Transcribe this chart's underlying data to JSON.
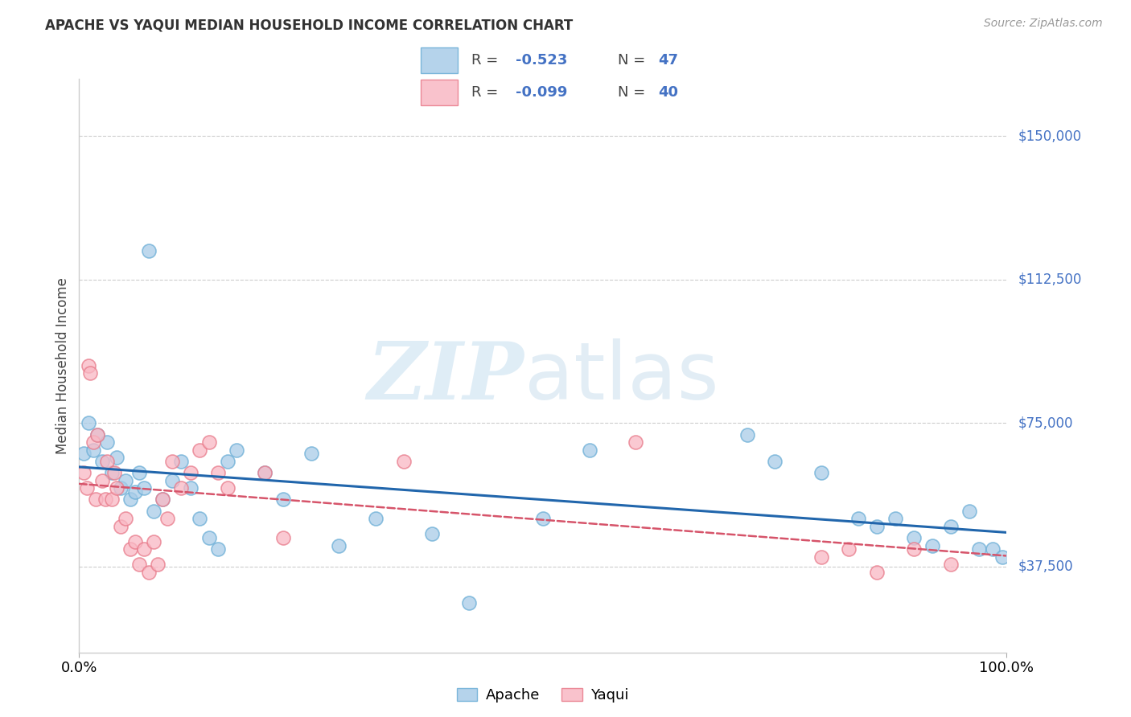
{
  "title": "APACHE VS YAQUI MEDIAN HOUSEHOLD INCOME CORRELATION CHART",
  "source": "Source: ZipAtlas.com",
  "ylabel": "Median Household Income",
  "xlim": [
    0.0,
    1.0
  ],
  "ylim": [
    15000,
    165000
  ],
  "yticks": [
    37500,
    75000,
    112500,
    150000
  ],
  "ytick_labels": [
    "$37,500",
    "$75,000",
    "$112,500",
    "$150,000"
  ],
  "apache_R": "-0.523",
  "apache_N": "47",
  "yaqui_R": "-0.099",
  "yaqui_N": "40",
  "apache_color": "#a8cce8",
  "apache_edge": "#6baed6",
  "yaqui_color": "#f9b8c4",
  "yaqui_edge": "#e87a8a",
  "apache_line_color": "#2166ac",
  "yaqui_line_color": "#d6546a",
  "accent_color": "#4472c4",
  "grid_color": "#cccccc",
  "background": "#ffffff",
  "apache_x": [
    0.005,
    0.01,
    0.015,
    0.02,
    0.025,
    0.03,
    0.035,
    0.04,
    0.045,
    0.05,
    0.055,
    0.06,
    0.065,
    0.07,
    0.075,
    0.08,
    0.09,
    0.1,
    0.11,
    0.12,
    0.13,
    0.14,
    0.15,
    0.16,
    0.17,
    0.2,
    0.22,
    0.25,
    0.28,
    0.32,
    0.38,
    0.42,
    0.5,
    0.55,
    0.72,
    0.75,
    0.8,
    0.84,
    0.86,
    0.88,
    0.9,
    0.92,
    0.94,
    0.96,
    0.97,
    0.985,
    0.995
  ],
  "apache_y": [
    67000,
    75000,
    68000,
    72000,
    65000,
    70000,
    62000,
    66000,
    58000,
    60000,
    55000,
    57000,
    62000,
    58000,
    120000,
    52000,
    55000,
    60000,
    65000,
    58000,
    50000,
    45000,
    42000,
    65000,
    68000,
    62000,
    55000,
    67000,
    43000,
    50000,
    46000,
    28000,
    50000,
    68000,
    72000,
    65000,
    62000,
    50000,
    48000,
    50000,
    45000,
    43000,
    48000,
    52000,
    42000,
    42000,
    40000
  ],
  "yaqui_x": [
    0.005,
    0.008,
    0.01,
    0.012,
    0.015,
    0.018,
    0.02,
    0.025,
    0.028,
    0.03,
    0.035,
    0.038,
    0.04,
    0.045,
    0.05,
    0.055,
    0.06,
    0.065,
    0.07,
    0.075,
    0.08,
    0.085,
    0.09,
    0.095,
    0.1,
    0.11,
    0.12,
    0.13,
    0.14,
    0.15,
    0.16,
    0.2,
    0.22,
    0.35,
    0.6,
    0.8,
    0.83,
    0.86,
    0.9,
    0.94
  ],
  "yaqui_y": [
    62000,
    58000,
    90000,
    88000,
    70000,
    55000,
    72000,
    60000,
    55000,
    65000,
    55000,
    62000,
    58000,
    48000,
    50000,
    42000,
    44000,
    38000,
    42000,
    36000,
    44000,
    38000,
    55000,
    50000,
    65000,
    58000,
    62000,
    68000,
    70000,
    62000,
    58000,
    62000,
    45000,
    65000,
    70000,
    40000,
    42000,
    36000,
    42000,
    38000
  ]
}
